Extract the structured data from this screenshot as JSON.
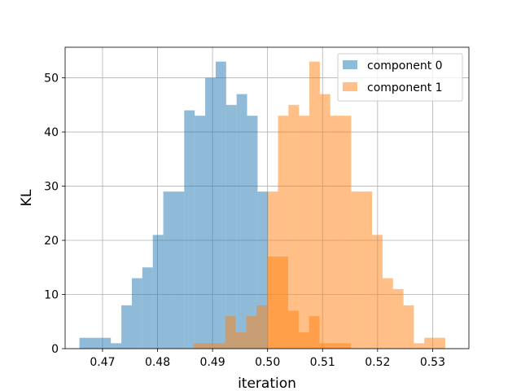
{
  "chart_data": {
    "type": "histogram",
    "xlabel": "iteration",
    "ylabel": "KL",
    "xlim": [
      0.4632,
      0.5366
    ],
    "ylim": [
      0,
      55.65
    ],
    "grid": true,
    "legend_position": "top-right",
    "xticks": [
      0.47,
      0.48,
      0.49,
      0.5,
      0.51,
      0.52,
      0.53
    ],
    "xtick_labels": [
      "0.47",
      "0.48",
      "0.49",
      "0.50",
      "0.51",
      "0.52",
      "0.53"
    ],
    "yticks": [
      0,
      10,
      20,
      30,
      40,
      50
    ],
    "ytick_labels": [
      "0",
      "10",
      "20",
      "30",
      "40",
      "50"
    ],
    "series": [
      {
        "name": "component 0",
        "color": "#1f77b4",
        "opacity": 0.5,
        "bin_start": 0.4658,
        "bin_width": 0.001905,
        "counts": [
          2,
          2,
          2,
          1,
          8,
          13,
          15,
          21,
          29,
          29,
          44,
          43,
          50,
          53,
          45,
          47,
          43,
          29
        ]
      },
      {
        "name": "component 1",
        "color": "#ff7f0e",
        "opacity": 0.5,
        "bin_start": 0.4866,
        "bin_width": 0.001905,
        "counts": [
          1,
          1,
          1,
          6,
          3,
          6,
          8,
          17,
          17,
          7,
          3,
          6,
          1,
          1,
          1
        ]
      },
      {
        "name": "",
        "color": "#ff7f0e",
        "opacity": 0.5,
        "bin_start": 0.5,
        "bin_width": 0.0019,
        "counts": [
          29,
          43,
          45,
          43,
          53,
          47,
          43,
          43,
          29,
          29,
          21,
          13,
          11,
          8,
          1,
          2,
          2
        ]
      }
    ]
  }
}
